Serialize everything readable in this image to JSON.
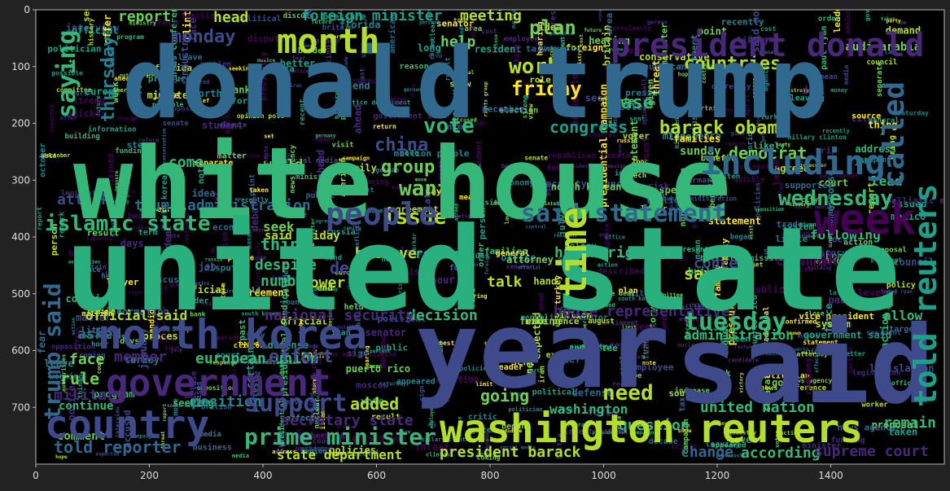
{
  "plot": {
    "background": "#000000",
    "frame_color": "#bbbbbb",
    "figure_background": "#222222",
    "x_ticks": [
      0,
      200,
      400,
      600,
      800,
      1000,
      1200,
      1400
    ],
    "y_ticks": [
      0,
      100,
      200,
      300,
      400,
      500,
      600,
      700
    ],
    "x_range": [
      0,
      1600
    ],
    "y_range": [
      0,
      800
    ]
  },
  "palette": [
    "#440154",
    "#482878",
    "#3e4a89",
    "#31688e",
    "#26828e",
    "#1f9e89",
    "#35b779",
    "#6ece58",
    "#b5de2b",
    "#fde725"
  ],
  "big_words": [
    {
      "text": "donald trump",
      "color": "#31688e"
    },
    {
      "text": "white house",
      "color": "#35b779"
    },
    {
      "text": "united state",
      "color": "#2ab07f"
    },
    {
      "text": "year",
      "color": "#3e4a89"
    },
    {
      "text": "said",
      "color": "#3e4a89"
    },
    {
      "text": "washington reuters",
      "color": "#b5de2b"
    },
    {
      "text": "north korea",
      "color": "#3e4a89"
    },
    {
      "text": "government",
      "color": "#482878"
    },
    {
      "text": "country",
      "color": "#3e4a89"
    },
    {
      "text": "president donald",
      "color": "#482878"
    },
    {
      "text": "week",
      "color": "#440154"
    },
    {
      "text": "including",
      "color": "#31688e"
    },
    {
      "text": "month",
      "color": "#b5de2b"
    },
    {
      "text": "people",
      "color": "#3e4a89"
    },
    {
      "text": "prime minister",
      "color": "#35b779"
    },
    {
      "text": "told reuters",
      "color": "#1f9e89"
    },
    {
      "text": "said statement",
      "color": "#31688e"
    },
    {
      "text": "time",
      "color": "#b5de2b"
    },
    {
      "text": "called",
      "color": "#31688e"
    },
    {
      "text": "tuesday",
      "color": "#35b779"
    },
    {
      "text": "support",
      "color": "#3e4a89"
    },
    {
      "text": "islamic state",
      "color": "#35b779"
    },
    {
      "text": "trump said",
      "color": "#31688e"
    }
  ],
  "mid_words": [
    {
      "text": "saying",
      "color": "#35b779"
    },
    {
      "text": "monday",
      "color": "#3e4a89"
    },
    {
      "text": "plan",
      "color": "#6ece58"
    },
    {
      "text": "work",
      "color": "#b5de2b"
    },
    {
      "text": "friday",
      "color": "#fde725"
    },
    {
      "text": "thursday",
      "color": "#26828e"
    },
    {
      "text": "vote",
      "color": "#35b779"
    },
    {
      "text": "congress",
      "color": "#1f9e89"
    },
    {
      "text": "barack obama",
      "color": "#b5de2b"
    },
    {
      "text": "china",
      "color": "#3e4a89"
    },
    {
      "text": "group",
      "color": "#6ece58"
    },
    {
      "text": "want",
      "color": "#6ece58"
    },
    {
      "text": "wednesday",
      "color": "#35b779"
    },
    {
      "text": "democrat",
      "color": "#6ece58"
    },
    {
      "text": "issue",
      "color": "#b5de2b"
    },
    {
      "text": "countries",
      "color": "#b5de2b"
    },
    {
      "text": "case",
      "color": "#35b779"
    },
    {
      "text": "lawmaker",
      "color": "#440154"
    },
    {
      "text": "report",
      "color": "#6ece58"
    },
    {
      "text": "head",
      "color": "#b5de2b"
    },
    {
      "text": "meeting",
      "color": "#b5de2b"
    },
    {
      "text": "foreign minister",
      "color": "#1f9e89"
    },
    {
      "text": "trump administration",
      "color": "#31688e"
    },
    {
      "text": "attack",
      "color": "#3e4a89"
    },
    {
      "text": "decision",
      "color": "#35b779"
    },
    {
      "text": "national security",
      "color": "#482878"
    },
    {
      "text": "official said",
      "color": "#b5de2b"
    },
    {
      "text": "house representative",
      "color": "#482878"
    },
    {
      "text": "asked",
      "color": "#31688e"
    },
    {
      "text": "member",
      "color": "#482878"
    },
    {
      "text": "european union",
      "color": "#35b779"
    },
    {
      "text": "effort",
      "color": "#3e4a89"
    },
    {
      "text": "face",
      "color": "#6ece58"
    },
    {
      "text": "rule",
      "color": "#6ece58"
    },
    {
      "text": "military",
      "color": "#482878"
    },
    {
      "text": "added",
      "color": "#b5de2b"
    },
    {
      "text": "going",
      "color": "#6ece58"
    },
    {
      "text": "need",
      "color": "#b5de2b"
    },
    {
      "text": "united nation",
      "color": "#35b779"
    },
    {
      "text": "position",
      "color": "#26828e"
    },
    {
      "text": "secretary state",
      "color": "#482878"
    },
    {
      "text": "told reporter",
      "color": "#31688e"
    },
    {
      "text": "state department",
      "color": "#b5de2b"
    },
    {
      "text": "president barack",
      "color": "#b5de2b"
    },
    {
      "text": "change",
      "color": "#31688e"
    },
    {
      "text": "according",
      "color": "#35b779"
    },
    {
      "text": "supreme court",
      "color": "#482878"
    },
    {
      "text": "administration",
      "color": "#35b779"
    },
    {
      "text": "think",
      "color": "#35b779"
    },
    {
      "text": "believe",
      "color": "#b5de2b"
    },
    {
      "text": "talk",
      "color": "#b5de2b"
    },
    {
      "text": "deal",
      "color": "#3e4a89"
    },
    {
      "text": "power",
      "color": "#b5de2b"
    },
    {
      "text": "number",
      "color": "#35b779"
    },
    {
      "text": "despite",
      "color": "#35b779"
    },
    {
      "text": "concern",
      "color": "#3e4a89"
    },
    {
      "text": "human right",
      "color": "#35b779"
    },
    {
      "text": "says",
      "color": "#b5de2b"
    },
    {
      "text": "lead",
      "color": "#35b779"
    },
    {
      "text": "remain",
      "color": "#35b779"
    },
    {
      "text": "allow",
      "color": "#35b779"
    },
    {
      "text": "question",
      "color": "#35b779"
    },
    {
      "text": "come",
      "color": "#35b779"
    },
    {
      "text": "region",
      "color": "#35b779"
    },
    {
      "text": "sunday",
      "color": "#6ece58"
    },
    {
      "text": "saudi arabia",
      "color": "#6ece58"
    },
    {
      "text": "comment",
      "color": "#6ece58"
    },
    {
      "text": "world",
      "color": "#6ece58"
    },
    {
      "text": "seek",
      "color": "#6ece58"
    },
    {
      "text": "following",
      "color": "#35b779"
    },
    {
      "text": "washington",
      "color": "#35b779"
    },
    {
      "text": "continue",
      "color": "#35b779"
    },
    {
      "text": "said friday",
      "color": "#b5de2b"
    },
    {
      "text": "help",
      "color": "#6ece58"
    }
  ],
  "small_words": [
    "action",
    "resident",
    "conflict",
    "south korea",
    "clinton",
    "hillary clinton",
    "russia",
    "include",
    "force",
    "given",
    "likely",
    "program",
    "company",
    "policies",
    "hope",
    "proposal",
    "measure",
    "political",
    "october",
    "mexico",
    "january",
    "step",
    "limit",
    "person",
    "hand",
    "process",
    "families",
    "currently",
    "protest",
    "control",
    "election",
    "market",
    "america",
    "critic",
    "city",
    "home",
    "long",
    "public",
    "economy",
    "sign",
    "place",
    "cost",
    "based",
    "saturday",
    "building",
    "point",
    "hour",
    "party",
    "start",
    "view",
    "agreement",
    "parties",
    "candidate",
    "campaign",
    "focus",
    "decade",
    "official",
    "present",
    "ahead",
    "response",
    "soon",
    "family",
    "employee",
    "recent",
    "good",
    "agreed",
    "funding",
    "strong",
    "trade deal",
    "said monday",
    "authorities",
    "german",
    "information",
    "obama administration",
    "conservative",
    "million people",
    "close",
    "investigation",
    "april",
    "increase",
    "began",
    "discuss",
    "remark",
    "benefit",
    "legislation",
    "result",
    "seen",
    "fear",
    "stop",
    "today",
    "july",
    "matter",
    "women",
    "law",
    "parliament",
    "area",
    "address",
    "possible",
    "expected",
    "bank",
    "return",
    "able",
    "certain",
    "target",
    "puerto rico",
    "previously",
    "past",
    "appeared",
    "kind",
    "leave",
    "lawyer",
    "bring",
    "sent",
    "debate",
    "held",
    "speech",
    "taken",
    "known",
    "event",
    "florida",
    "demand",
    "news conference",
    "confirmed",
    "worker",
    "police",
    "industry",
    "american",
    "threat",
    "reason",
    "money",
    "august",
    "level",
    "role",
    "europe",
    "iran",
    "fund",
    "little",
    "opposition",
    "turkey",
    "risk",
    "mean",
    "leader",
    "reform",
    "accused",
    "student",
    "coming",
    "look",
    "ballistic missile",
    "security council",
    "mike pence",
    "paul ryan",
    "vice president",
    "rights group",
    "justice department",
    "government said",
    "north korean",
    "presidential campaign",
    "presidential candidate",
    "republican senator",
    "social media",
    "news agency",
    "opinion poll",
    "prosecutor",
    "system",
    "separate",
    "general",
    "review",
    "second",
    "future",
    "business",
    "better",
    "story",
    "issued",
    "interview",
    "ministry",
    "statement",
    "pressure",
    "nuclear",
    "office",
    "agency",
    "effect",
    "moscow",
    "media",
    "voter",
    "council",
    "senator",
    "senate",
    "committee",
    "minister",
    "hearing",
    "letter",
    "visit",
    "trip",
    "crisis",
    "policy",
    "border",
    "region",
    "order",
    "expected",
    "tax",
    "job",
    "plan",
    "race",
    "court",
    "judge",
    "report",
    "deal",
    "leaving",
    "recently",
    "politician",
    "germany",
    "december",
    "working",
    "seeking",
    "supporter",
    "attorney",
    "record",
    "thing",
    "history",
    "adding",
    "described",
    "problem",
    "official",
    "dispute",
    "taiwan",
    "offer",
    "term",
    "chief",
    "action",
    "british",
    "britain",
    "source",
    "quickly",
    "vote",
    "victory",
    "defense",
    "trade",
    "million",
    "billion",
    "percent",
    "reuters",
    "islam",
    "move",
    "week",
    "set",
    "rule",
    "term",
    "late",
    "day",
    "end",
    "show",
    "idea",
    "days",
    "note",
    "north",
    "foreign",
    "president"
  ]
}
